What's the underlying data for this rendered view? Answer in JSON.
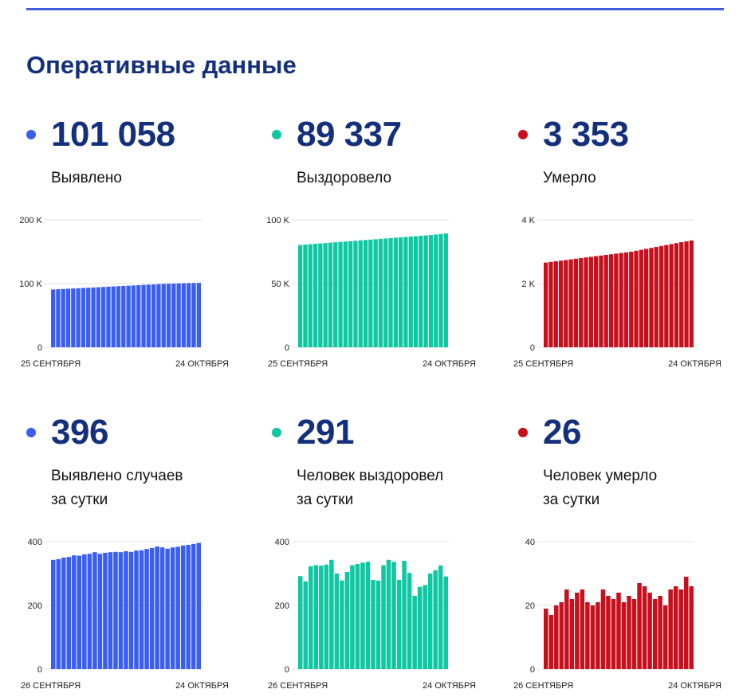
{
  "title": "Оперативные данные",
  "colors": {
    "blue": "#3a5df2",
    "green": "#0fc7a2",
    "red": "#c8101d",
    "title": "#14307c",
    "rule": "#3e5fd9"
  },
  "stats": [
    {
      "value": "101 058",
      "label_lines": [
        "Выявлено"
      ],
      "color": "#3a5df2"
    },
    {
      "value": "89 337",
      "label_lines": [
        "Выздоровело"
      ],
      "color": "#0fc7a2"
    },
    {
      "value": "3 353",
      "label_lines": [
        "Умерло"
      ],
      "color": "#c8101d"
    },
    {
      "value": "396",
      "label_lines": [
        "Выявлено случаев",
        "за сутки"
      ],
      "color": "#3a5df2"
    },
    {
      "value": "291",
      "label_lines": [
        "Человек выздоровел",
        "за сутки"
      ],
      "color": "#0fc7a2"
    },
    {
      "value": "26",
      "label_lines": [
        "Человек умерло",
        "за сутки"
      ],
      "color": "#c8101d"
    }
  ],
  "chart_data": [
    {
      "type": "bar",
      "color": "#3a5df2",
      "x_start_label": "25 СЕНТЯБРЯ",
      "x_end_label": "24 ОКТЯБРЯ",
      "y_ticks": [
        {
          "v": 0,
          "t": "0"
        },
        {
          "v": 100000,
          "t": "100 K"
        },
        {
          "v": 200000,
          "t": "200 K"
        }
      ],
      "ylim": [
        0,
        200000
      ],
      "values": [
        90700,
        91100,
        91500,
        91900,
        92300,
        92700,
        93100,
        93500,
        93900,
        94300,
        94700,
        95100,
        95500,
        95900,
        96300,
        96700,
        97100,
        97500,
        97900,
        98300,
        98700,
        99100,
        99500,
        99800,
        100100,
        100400,
        100600,
        100800,
        100950,
        101058
      ]
    },
    {
      "type": "bar",
      "color": "#0fc7a2",
      "x_start_label": "25 СЕНТЯБРЯ",
      "x_end_label": "24 ОКТЯБРЯ",
      "y_ticks": [
        {
          "v": 0,
          "t": "0"
        },
        {
          "v": 50000,
          "t": "50 K"
        },
        {
          "v": 100000,
          "t": "100 K"
        }
      ],
      "ylim": [
        0,
        100000
      ],
      "values": [
        80300,
        80600,
        80900,
        81200,
        81500,
        81800,
        82100,
        82400,
        82700,
        83000,
        83300,
        83600,
        83900,
        84200,
        84500,
        84800,
        85100,
        85400,
        85700,
        86000,
        86300,
        86600,
        86900,
        87200,
        87500,
        87800,
        88100,
        88500,
        88900,
        89337
      ]
    },
    {
      "type": "bar",
      "color": "#c8101d",
      "x_start_label": "25 СЕНТЯБРЯ",
      "x_end_label": "24 ОКТЯБРЯ",
      "y_ticks": [
        {
          "v": 0,
          "t": "0"
        },
        {
          "v": 2000,
          "t": "2 K"
        },
        {
          "v": 4000,
          "t": "4 K"
        }
      ],
      "ylim": [
        0,
        4000
      ],
      "values": [
        2660,
        2680,
        2700,
        2720,
        2740,
        2760,
        2780,
        2800,
        2820,
        2840,
        2860,
        2880,
        2900,
        2920,
        2940,
        2960,
        2980,
        3000,
        3030,
        3060,
        3090,
        3120,
        3150,
        3180,
        3210,
        3240,
        3270,
        3300,
        3327,
        3353
      ]
    },
    {
      "type": "bar",
      "color": "#3a5df2",
      "x_start_label": "26 СЕНТЯБРЯ",
      "x_end_label": "24 ОКТЯБРЯ",
      "y_ticks": [
        {
          "v": 0,
          "t": "0"
        },
        {
          "v": 200,
          "t": "200"
        },
        {
          "v": 400,
          "t": "400"
        }
      ],
      "ylim": [
        0,
        400
      ],
      "values": [
        343,
        345,
        350,
        352,
        357,
        356,
        360,
        362,
        367,
        362,
        365,
        367,
        368,
        367,
        370,
        368,
        372,
        373,
        377,
        380,
        385,
        382,
        378,
        382,
        384,
        388,
        390,
        393,
        396
      ]
    },
    {
      "type": "bar",
      "color": "#0fc7a2",
      "x_start_label": "26 СЕНТЯБРЯ",
      "x_end_label": "24 ОКТЯБРЯ",
      "y_ticks": [
        {
          "v": 0,
          "t": "0"
        },
        {
          "v": 200,
          "t": "200"
        },
        {
          "v": 400,
          "t": "400"
        }
      ],
      "ylim": [
        0,
        400
      ],
      "values": [
        292,
        275,
        323,
        326,
        325,
        328,
        343,
        300,
        278,
        305,
        326,
        330,
        334,
        337,
        280,
        278,
        326,
        343,
        337,
        280,
        340,
        302,
        230,
        258,
        264,
        300,
        310,
        325,
        291
      ]
    },
    {
      "type": "bar",
      "color": "#c8101d",
      "x_start_label": "26 СЕНТЯБРЯ",
      "x_end_label": "24 ОКТЯБРЯ",
      "y_ticks": [
        {
          "v": 0,
          "t": "0"
        },
        {
          "v": 20,
          "t": "20"
        },
        {
          "v": 40,
          "t": "40"
        }
      ],
      "ylim": [
        0,
        40
      ],
      "values": [
        19,
        17,
        20,
        21,
        25,
        22,
        24,
        25,
        21,
        20,
        21,
        25,
        23,
        22,
        24,
        21,
        23,
        22,
        27,
        26,
        24,
        22,
        23,
        20,
        25,
        26,
        25,
        29,
        26
      ]
    }
  ]
}
